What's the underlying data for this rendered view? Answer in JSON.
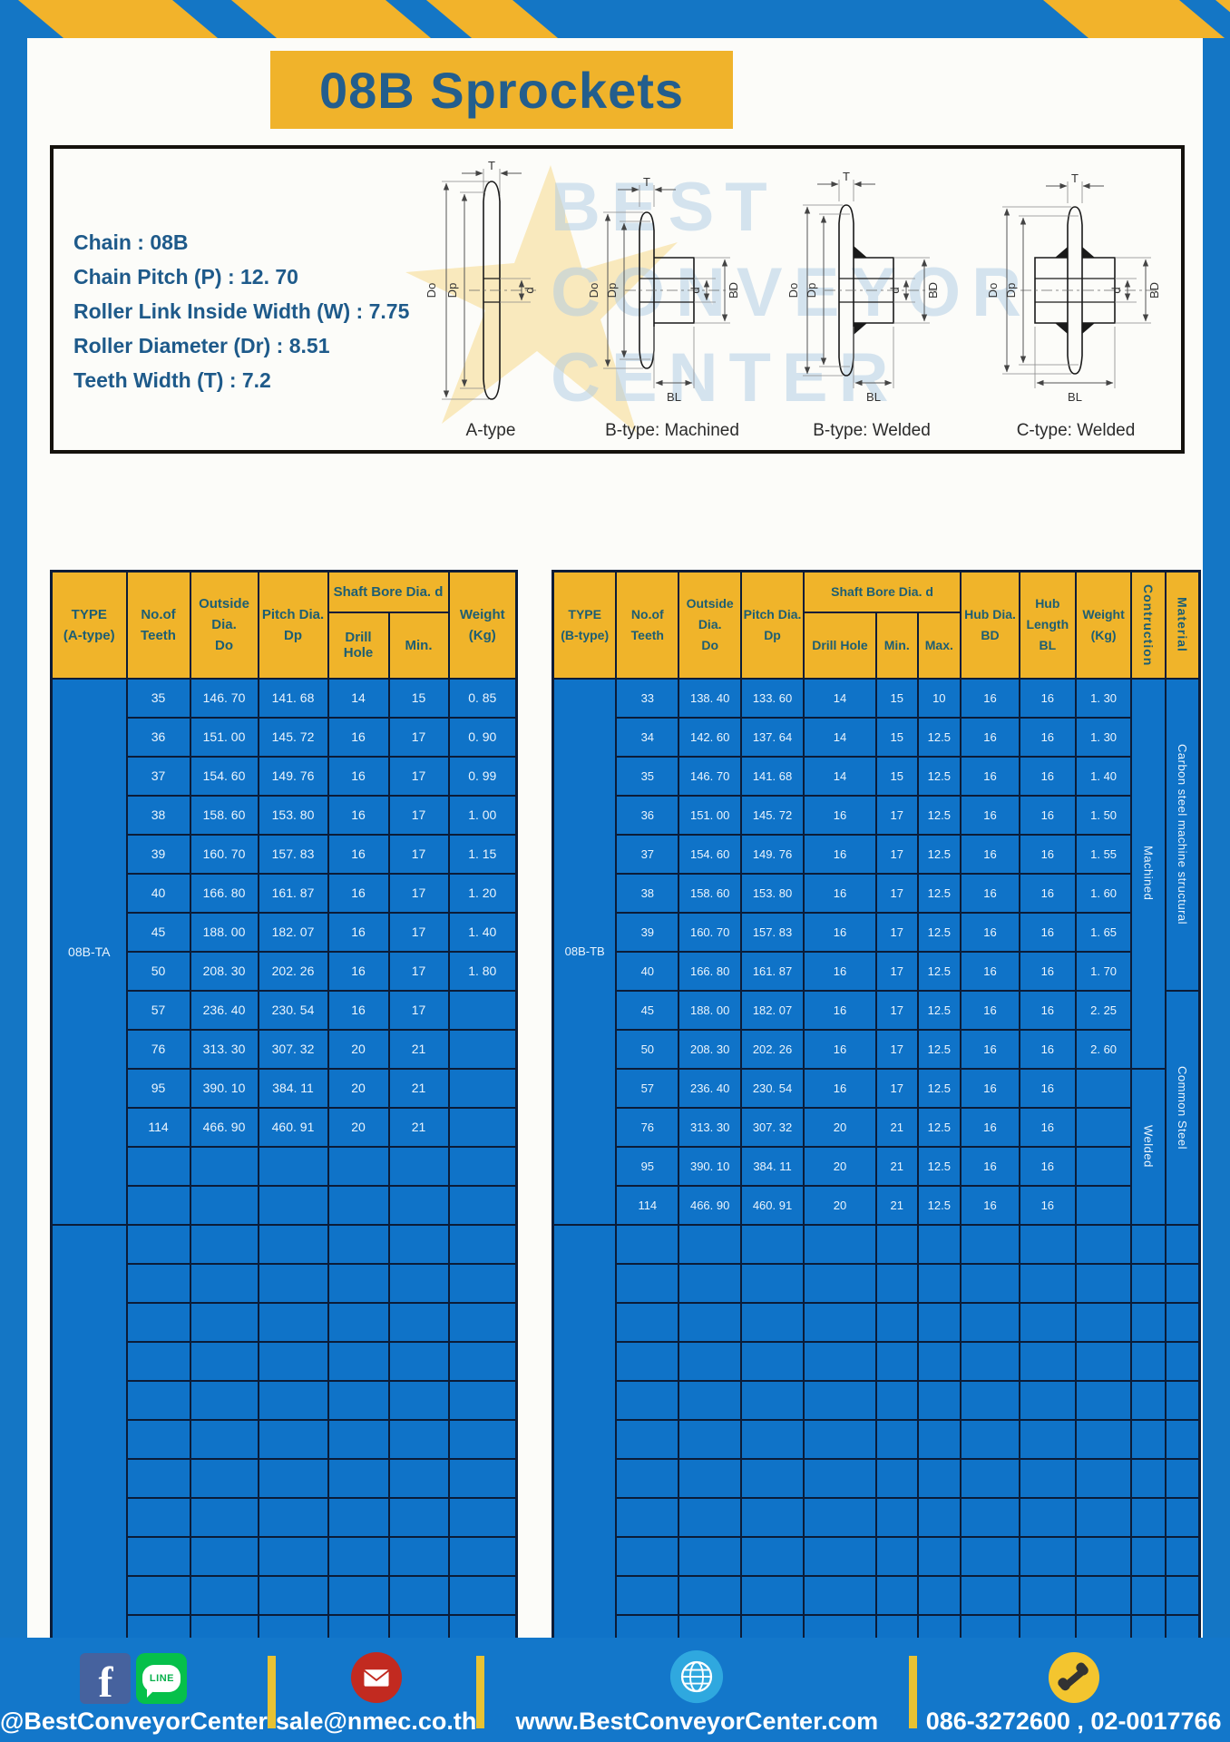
{
  "colors": {
    "frame_blue": "#1476C5",
    "accent_yellow": "#F0B42A",
    "table_body_blue": "#0F73C8",
    "table_border": "#0B1C38",
    "header_text": "#1D5E73",
    "title_text": "#235E8D"
  },
  "title": "08B Sprockets",
  "specs": {
    "lines": [
      "Chain  :  08B",
      "Chain Pitch (P)  :  12. 70",
      "Roller Link Inside Width (W)  :  7.75",
      "Roller Diameter (Dr)  :  8.51",
      "Teeth Width (T)  :  7.2"
    ]
  },
  "diagram": {
    "figures": [
      "A-type",
      "B-type: Machined",
      "B-type: Welded",
      "C-type: Welded"
    ],
    "dims": {
      "t": "T",
      "do": "Do",
      "dp": "Dp",
      "d": "d",
      "bd": "BD",
      "bl": "BL"
    },
    "watermark": [
      "BEST",
      "CONVEYOR",
      "CENTER"
    ]
  },
  "tableA": {
    "type_label": "08B-TA",
    "headers": {
      "type1": "TYPE",
      "type2": "(A-type)",
      "teeth1": "No.of",
      "teeth2": "Teeth",
      "outside1": "Outside",
      "outside2": "Dia.",
      "outside3": "Do",
      "pitch1": "Pitch Dia.",
      "pitch2": "Dp",
      "shaft_bore": "Shaft Bore Dia. d",
      "drill": "Drill Hole",
      "min": "Min.",
      "weight1": "Weight",
      "weight2": "(Kg)"
    },
    "rows": [
      [
        "35",
        "146. 70",
        "141. 68",
        "14",
        "15",
        "0. 85"
      ],
      [
        "36",
        "151. 00",
        "145. 72",
        "16",
        "17",
        "0. 90"
      ],
      [
        "37",
        "154. 60",
        "149. 76",
        "16",
        "17",
        "0. 99"
      ],
      [
        "38",
        "158. 60",
        "153. 80",
        "16",
        "17",
        "1. 00"
      ],
      [
        "39",
        "160. 70",
        "157. 83",
        "16",
        "17",
        "1. 15"
      ],
      [
        "40",
        "166. 80",
        "161. 87",
        "16",
        "17",
        "1. 20"
      ],
      [
        "45",
        "188. 00",
        "182. 07",
        "16",
        "17",
        "1. 40"
      ],
      [
        "50",
        "208. 30",
        "202. 26",
        "16",
        "17",
        "1. 80"
      ],
      [
        "57",
        "236. 40",
        "230. 54",
        "16",
        "17",
        ""
      ],
      [
        "76",
        "313. 30",
        "307. 32",
        "20",
        "21",
        ""
      ],
      [
        "95",
        "390. 10",
        "384. 11",
        "20",
        "21",
        ""
      ],
      [
        "114",
        "466. 90",
        "460. 91",
        "20",
        "21",
        ""
      ]
    ],
    "section1_empty": 2,
    "section2_rows": 11
  },
  "tableB": {
    "type_label": "08B-TB",
    "headers": {
      "type1": "TYPE",
      "type2": "(B-type)",
      "teeth1": "No.of",
      "teeth2": "Teeth",
      "outside1": "Outside",
      "outside2": "Dia.",
      "outside3": "Do",
      "pitch1": "Pitch Dia.",
      "pitch2": "Dp",
      "shaft_bore": "Shaft Bore Dia. d",
      "drill": "Drill Hole",
      "min": "Min.",
      "max": "Max.",
      "hub_dia1": "Hub Dia.",
      "hub_dia2": "BD",
      "hub_len1": "Hub",
      "hub_len2": "Length",
      "hub_len3": "BL",
      "weight1": "Weight",
      "weight2": "(Kg)",
      "construction": "Contruction",
      "material": "Material"
    },
    "rows": [
      [
        "33",
        "138. 40",
        "133. 60",
        "14",
        "15",
        "10",
        "16",
        "16",
        "1. 30"
      ],
      [
        "34",
        "142. 60",
        "137. 64",
        "14",
        "15",
        "12.5",
        "16",
        "16",
        "1. 30"
      ],
      [
        "35",
        "146. 70",
        "141. 68",
        "14",
        "15",
        "12.5",
        "16",
        "16",
        "1. 40"
      ],
      [
        "36",
        "151. 00",
        "145. 72",
        "16",
        "17",
        "12.5",
        "16",
        "16",
        "1. 50"
      ],
      [
        "37",
        "154. 60",
        "149. 76",
        "16",
        "17",
        "12.5",
        "16",
        "16",
        "1. 55"
      ],
      [
        "38",
        "158. 60",
        "153. 80",
        "16",
        "17",
        "12.5",
        "16",
        "16",
        "1. 60"
      ],
      [
        "39",
        "160. 70",
        "157. 83",
        "16",
        "17",
        "12.5",
        "16",
        "16",
        "1. 65"
      ],
      [
        "40",
        "166. 80",
        "161. 87",
        "16",
        "17",
        "12.5",
        "16",
        "16",
        "1. 70"
      ],
      [
        "45",
        "188. 00",
        "182. 07",
        "16",
        "17",
        "12.5",
        "16",
        "16",
        "2. 25"
      ],
      [
        "50",
        "208. 30",
        "202. 26",
        "16",
        "17",
        "12.5",
        "16",
        "16",
        "2. 60"
      ],
      [
        "57",
        "236. 40",
        "230. 54",
        "16",
        "17",
        "12.5",
        "16",
        "16",
        ""
      ],
      [
        "76",
        "313. 30",
        "307. 32",
        "20",
        "21",
        "12.5",
        "16",
        "16",
        ""
      ],
      [
        "95",
        "390. 10",
        "384. 11",
        "20",
        "21",
        "12.5",
        "16",
        "16",
        ""
      ],
      [
        "114",
        "466. 90",
        "460. 91",
        "20",
        "21",
        "12.5",
        "16",
        "16",
        ""
      ]
    ],
    "construction_spans": [
      {
        "start": 0,
        "rows": 10,
        "label": "Machined"
      },
      {
        "start": 10,
        "rows": 4,
        "label": "Welded"
      }
    ],
    "material_spans": [
      {
        "start": 0,
        "rows": 8,
        "label": "Carbon steel  machine structural"
      },
      {
        "start": 8,
        "rows": 6,
        "label": "Common Steel"
      }
    ],
    "section1_empty": 0,
    "section2_rows": 11
  },
  "footer": {
    "handle": "@BestConveyorCenter",
    "email": "sale@nmec.co.th",
    "website": "www.BestConveyorCenter.com",
    "phones": "086-3272600 , 02-0017766",
    "facebook_letter": "f",
    "line_badge": "LINE"
  }
}
